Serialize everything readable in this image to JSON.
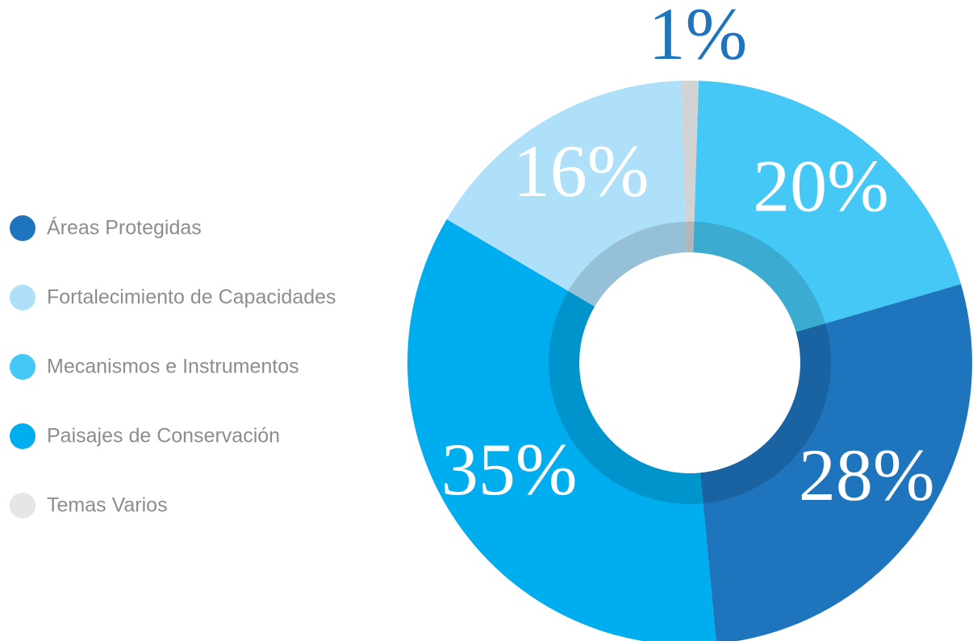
{
  "chart_data": {
    "type": "pie",
    "categories": [
      "Áreas Protegidas",
      "Fortalecimiento de Capacidades",
      "Mecanismos e Instrumentos",
      "Paisajes de Conservación",
      "Temas Varios"
    ],
    "values": [
      28,
      16,
      20,
      35,
      1
    ],
    "value_labels": [
      "28%",
      "16%",
      "20%",
      "35%",
      "1%"
    ],
    "colors": [
      "#1e74bd",
      "#aee0fa",
      "#45c8f5",
      "#00adee",
      "#d1d3d4"
    ],
    "legend": "left"
  }
}
